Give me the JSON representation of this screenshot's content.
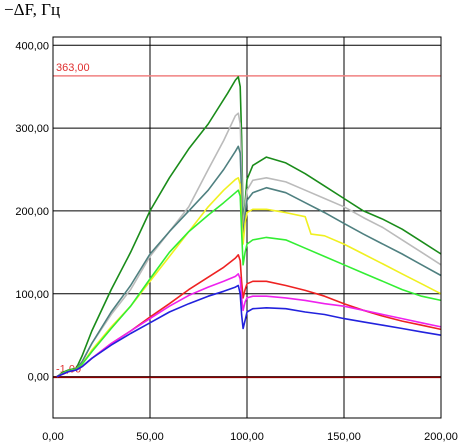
{
  "chart_data": {
    "type": "line",
    "title": "",
    "xlabel": "",
    "ylabel": "−ΔF, Гц",
    "xlim": [
      0,
      200
    ],
    "ylim": [
      -50,
      410
    ],
    "grid": true,
    "x_ticks": [
      0,
      50,
      100,
      150,
      200
    ],
    "x_tick_labels": [
      "0,00",
      "50,00",
      "100,00",
      "150,00",
      "200,00"
    ],
    "y_ticks": [
      0,
      100,
      200,
      300,
      400
    ],
    "y_tick_labels": [
      "0,00",
      "100,00",
      "200,00",
      "300,00",
      "400,00"
    ],
    "reference_lines": [
      {
        "value": 363,
        "label": "363,00",
        "color": "#f08080",
        "label_color": "#e03030"
      },
      {
        "value": -1,
        "label": "-1,00",
        "color": "#8b0000",
        "label_color": "#e03030"
      }
    ],
    "series": [
      {
        "color": "#1a8c1a",
        "x": [
          2,
          5,
          8,
          12,
          15,
          20,
          30,
          40,
          50,
          60,
          70,
          80,
          90,
          94,
          95.5,
          96.5,
          97.2,
          98,
          99,
          100,
          103,
          110,
          120,
          130,
          140,
          150,
          160,
          170,
          180,
          190,
          200
        ],
        "y": [
          0,
          5,
          8,
          10,
          25,
          55,
          105,
          150,
          200,
          240,
          275,
          305,
          342,
          358,
          362,
          350,
          290,
          185,
          210,
          238,
          255,
          265,
          258,
          245,
          230,
          215,
          200,
          190,
          178,
          163,
          148
        ]
      },
      {
        "color": "#bbbbbb",
        "x": [
          2,
          5,
          8,
          12,
          15,
          20,
          30,
          40,
          50,
          60,
          70,
          80,
          88,
          92,
          94,
          95.5,
          96.5,
          97.2,
          98,
          99,
          100,
          103,
          110,
          120,
          130,
          140,
          150,
          160,
          170,
          180,
          190,
          200
        ],
        "y": [
          0,
          4,
          7,
          9,
          18,
          40,
          75,
          105,
          145,
          175,
          205,
          250,
          285,
          305,
          315,
          318,
          305,
          250,
          175,
          205,
          225,
          237,
          240,
          235,
          225,
          215,
          205,
          192,
          180,
          165,
          150,
          135
        ]
      },
      {
        "color": "#4f8080",
        "x": [
          2,
          5,
          8,
          12,
          15,
          20,
          30,
          40,
          50,
          60,
          70,
          80,
          88,
          94,
          95.5,
          96.5,
          97.2,
          98,
          99,
          100,
          103,
          110,
          120,
          130,
          140,
          150,
          160,
          170,
          180,
          190,
          200
        ],
        "y": [
          0,
          4,
          7,
          9,
          18,
          40,
          78,
          110,
          148,
          175,
          200,
          225,
          250,
          272,
          278,
          270,
          220,
          165,
          195,
          213,
          222,
          228,
          222,
          210,
          198,
          185,
          172,
          160,
          148,
          135,
          122
        ]
      },
      {
        "color": "#f0f020",
        "x": [
          2,
          5,
          8,
          12,
          15,
          20,
          30,
          40,
          50,
          60,
          70,
          80,
          88,
          94,
          95.5,
          96.5,
          97.2,
          98,
          99,
          100,
          103,
          110,
          120,
          130,
          133,
          140,
          150,
          160,
          170,
          180,
          190,
          200
        ],
        "y": [
          0,
          4,
          7,
          9,
          15,
          32,
          60,
          85,
          115,
          145,
          175,
          205,
          225,
          238,
          240,
          232,
          190,
          160,
          185,
          198,
          202,
          202,
          198,
          193,
          172,
          170,
          160,
          148,
          136,
          124,
          112,
          100
        ]
      },
      {
        "color": "#33ee33",
        "x": [
          2,
          5,
          8,
          12,
          15,
          20,
          30,
          40,
          50,
          60,
          70,
          80,
          88,
          94,
          95.5,
          96.5,
          97.2,
          98,
          99,
          100,
          103,
          110,
          120,
          130,
          140,
          150,
          160,
          170,
          180,
          190,
          200
        ],
        "y": [
          0,
          4,
          7,
          9,
          15,
          30,
          58,
          85,
          118,
          150,
          175,
          195,
          210,
          222,
          225,
          218,
          175,
          135,
          150,
          160,
          165,
          168,
          165,
          155,
          145,
          135,
          125,
          115,
          105,
          97,
          92
        ]
      },
      {
        "color": "#ee2222",
        "x": [
          2,
          5,
          8,
          12,
          15,
          20,
          30,
          40,
          50,
          60,
          70,
          80,
          88,
          94,
          95.5,
          96.5,
          97.2,
          98,
          99,
          100,
          103,
          110,
          120,
          130,
          140,
          150,
          160,
          170,
          180,
          190,
          200
        ],
        "y": [
          0,
          3,
          6,
          8,
          12,
          22,
          40,
          55,
          72,
          88,
          105,
          120,
          132,
          143,
          147,
          140,
          115,
          95,
          105,
          112,
          115,
          115,
          110,
          104,
          97,
          88,
          80,
          73,
          67,
          62,
          57
        ]
      },
      {
        "color": "#ee22ee",
        "x": [
          2,
          5,
          8,
          12,
          15,
          20,
          30,
          40,
          50,
          60,
          70,
          80,
          88,
          94,
          95.5,
          96.5,
          97.2,
          98,
          99,
          100,
          103,
          110,
          120,
          130,
          140,
          150,
          160,
          170,
          180,
          190,
          200
        ],
        "y": [
          0,
          3,
          6,
          8,
          12,
          22,
          40,
          55,
          70,
          85,
          98,
          108,
          115,
          121,
          124,
          118,
          95,
          80,
          90,
          95,
          97,
          97,
          95,
          92,
          88,
          85,
          80,
          75,
          70,
          65,
          60
        ]
      },
      {
        "color": "#2222dd",
        "x": [
          2,
          5,
          8,
          12,
          15,
          20,
          30,
          40,
          50,
          60,
          70,
          80,
          88,
          94,
          95.5,
          96.5,
          97.2,
          98,
          99,
          100,
          103,
          110,
          120,
          130,
          140,
          150,
          160,
          170,
          180,
          190,
          200
        ],
        "y": [
          0,
          3,
          6,
          8,
          12,
          22,
          38,
          52,
          65,
          78,
          88,
          97,
          103,
          108,
          110,
          100,
          75,
          58,
          68,
          78,
          82,
          83,
          82,
          78,
          75,
          70,
          66,
          62,
          58,
          54,
          50
        ]
      }
    ]
  }
}
